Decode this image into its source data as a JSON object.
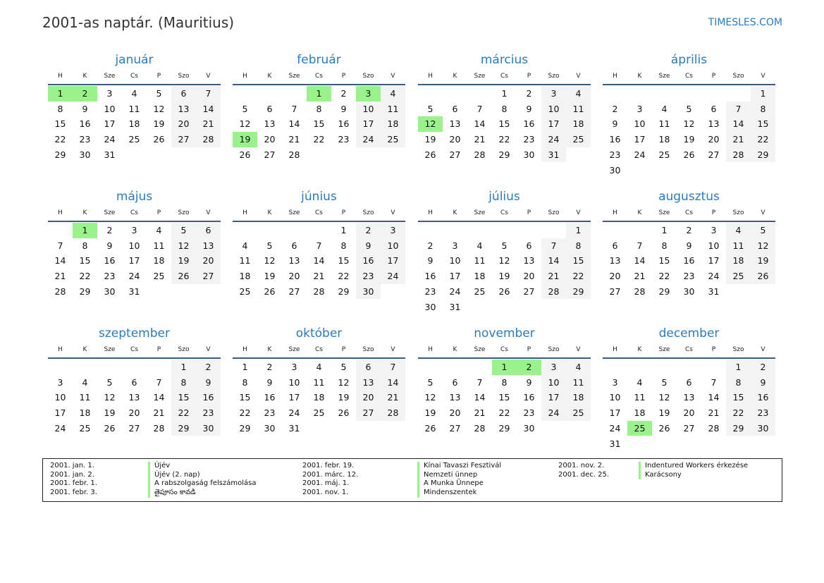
{
  "title": "2001-as naptár. (Mauritius)",
  "brand": "TIMESLES.COM",
  "year": 2001,
  "weekdays": [
    "H",
    "K",
    "Sze",
    "Cs",
    "P",
    "Szo",
    "V"
  ],
  "colors": {
    "accent": "#2a7bc0",
    "holiday": "#99f28a",
    "weekend": "#f3f3f3",
    "rule": "#3b5a8a"
  },
  "months": [
    {
      "name": "január",
      "holidays": [
        1,
        2
      ]
    },
    {
      "name": "február",
      "holidays": [
        1,
        3,
        19
      ]
    },
    {
      "name": "március",
      "holidays": [
        12
      ]
    },
    {
      "name": "április",
      "holidays": []
    },
    {
      "name": "május",
      "holidays": [
        1
      ]
    },
    {
      "name": "június",
      "holidays": []
    },
    {
      "name": "július",
      "holidays": []
    },
    {
      "name": "augusztus",
      "holidays": []
    },
    {
      "name": "szeptember",
      "holidays": []
    },
    {
      "name": "október",
      "holidays": []
    },
    {
      "name": "november",
      "holidays": [
        1,
        2
      ]
    },
    {
      "name": "december",
      "holidays": [
        25
      ]
    }
  ],
  "legend": [
    [
      {
        "date": "2001. jan. 1.",
        "name": "Újév"
      },
      {
        "date": "2001. jan. 2.",
        "name": "Újév (2. nap)"
      },
      {
        "date": "2001. febr. 1.",
        "name": "A rabszolgaság felszámolása"
      },
      {
        "date": "2001. febr. 3.",
        "name": "తైపూసం కావడి"
      }
    ],
    [
      {
        "date": "2001. febr. 19.",
        "name": "Kínai Tavaszi Fesztivál"
      },
      {
        "date": "2001. márc. 12.",
        "name": "Nemzeti ünnep"
      },
      {
        "date": "2001. máj. 1.",
        "name": "A Munka Ünnepe"
      },
      {
        "date": "2001. nov. 1.",
        "name": "Mindenszentek"
      }
    ],
    [
      {
        "date": "2001. nov. 2.",
        "name": "Indentured Workers érkezése"
      },
      {
        "date": "2001. dec. 25.",
        "name": "Karácsony"
      }
    ]
  ]
}
